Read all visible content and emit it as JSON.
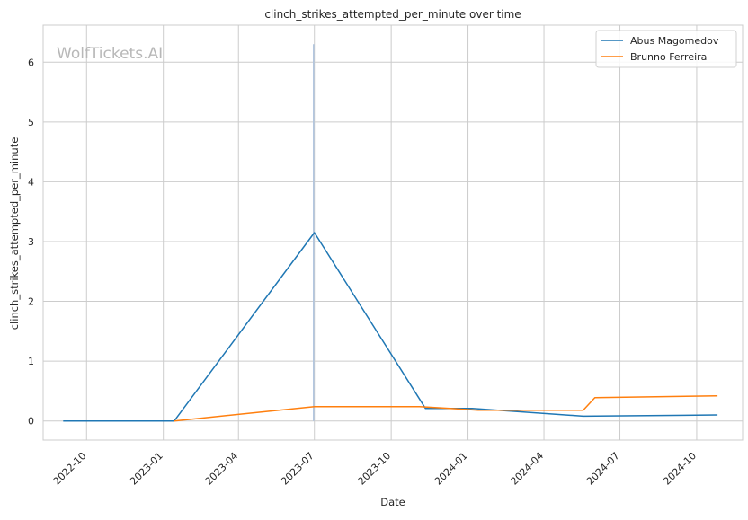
{
  "chart_data": {
    "type": "line",
    "title": "clinch_strikes_attempted_per_minute over time",
    "xlabel": "Date",
    "ylabel": "clinch_strikes_attempted_per_minute",
    "watermark": "WolfTickets.AI",
    "x_ticks": [
      "2022-10",
      "2023-01",
      "2023-04",
      "2023-07",
      "2023-10",
      "2024-01",
      "2024-04",
      "2024-07",
      "2024-10"
    ],
    "y_ticks": [
      0,
      1,
      2,
      3,
      4,
      5,
      6
    ],
    "xlim": [
      "2022-08-10",
      "2024-11-25"
    ],
    "ylim": [
      -0.32,
      6.62
    ],
    "grid": true,
    "legend_position": "top-right",
    "colors": {
      "series1": "#1f77b4",
      "series2": "#ff7f0e",
      "marker_line": "#b0c4de"
    },
    "vertical_marker": {
      "x": "2023-06-30",
      "y": [
        0,
        6.3
      ]
    },
    "series": [
      {
        "name": "Abus Magomedov",
        "color": "#1f77b4",
        "points": [
          {
            "x": "2022-09-03",
            "y": 0.0
          },
          {
            "x": "2023-01-14",
            "y": 0.0
          },
          {
            "x": "2023-07-01",
            "y": 3.15
          },
          {
            "x": "2023-11-11",
            "y": 0.21
          },
          {
            "x": "2024-01-06",
            "y": 0.21
          },
          {
            "x": "2024-05-18",
            "y": 0.08
          },
          {
            "x": "2024-10-26",
            "y": 0.1
          }
        ]
      },
      {
        "name": "Brunno Ferreira",
        "color": "#ff7f0e",
        "points": [
          {
            "x": "2023-01-14",
            "y": 0.0
          },
          {
            "x": "2023-07-01",
            "y": 0.24
          },
          {
            "x": "2023-11-04",
            "y": 0.24
          },
          {
            "x": "2024-01-13",
            "y": 0.18
          },
          {
            "x": "2024-05-18",
            "y": 0.18
          },
          {
            "x": "2024-06-01",
            "y": 0.39
          },
          {
            "x": "2024-10-26",
            "y": 0.42
          }
        ]
      }
    ]
  }
}
